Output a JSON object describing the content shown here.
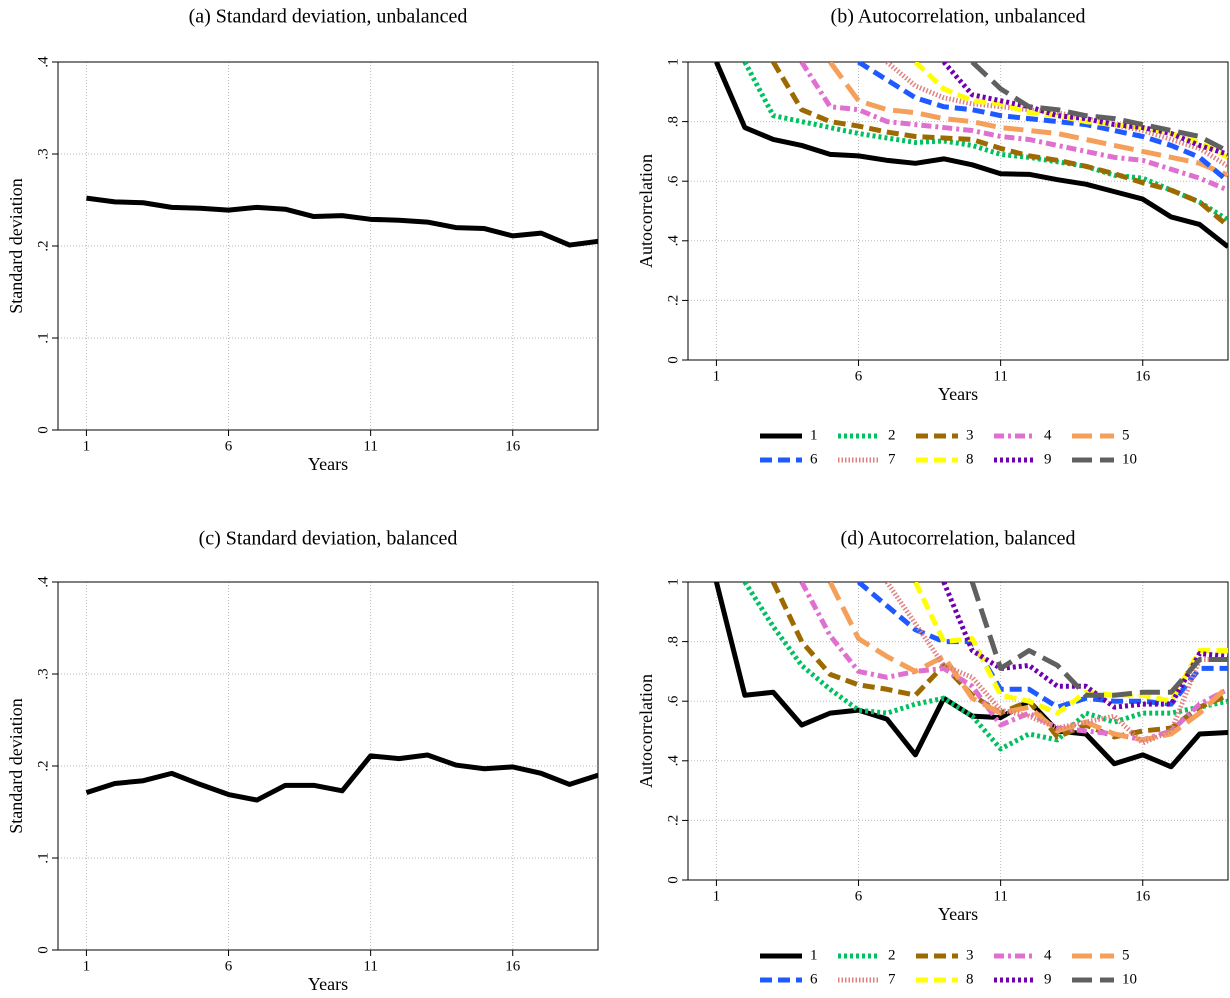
{
  "chart_data": [
    {
      "type": "line",
      "title": "(a) Standard deviation, unbalanced",
      "xlabel": "Years",
      "ylabel": "Standard deviation",
      "x": [
        1,
        2,
        3,
        4,
        5,
        6,
        7,
        8,
        9,
        10,
        11,
        12,
        13,
        14,
        15,
        16,
        17,
        18,
        19
      ],
      "xlim": [
        0,
        19
      ],
      "xticks": [
        1,
        6,
        11,
        16
      ],
      "ylim": [
        0,
        0.4
      ],
      "yticks": [
        0,
        {
          "value": 0.1,
          "label": ".1"
        },
        {
          "value": 0.2,
          "label": ".2"
        },
        {
          "value": 0.3,
          "label": ".3"
        },
        {
          "value": 0.4,
          "label": ".4"
        }
      ],
      "grid": true,
      "series": [
        {
          "color": "#000000",
          "style": "solid",
          "values": [
            0.252,
            0.248,
            0.247,
            0.242,
            0.241,
            0.239,
            0.242,
            0.24,
            0.232,
            0.233,
            0.229,
            0.228,
            0.226,
            0.22,
            0.219,
            0.211,
            0.214,
            0.201,
            0.205
          ]
        }
      ]
    },
    {
      "type": "line",
      "title": "(b) Autocorrelation, unbalanced",
      "xlabel": "Years",
      "ylabel": "Autocorrelation",
      "x": [
        1,
        2,
        3,
        4,
        5,
        6,
        7,
        8,
        9,
        10,
        11,
        12,
        13,
        14,
        15,
        16,
        17,
        18,
        19
      ],
      "xlim": [
        0,
        19
      ],
      "xticks": [
        1,
        6,
        11,
        16
      ],
      "ylim": [
        0,
        1
      ],
      "yticks": [
        0,
        {
          "value": 0.2,
          "label": ".2"
        },
        {
          "value": 0.4,
          "label": ".4"
        },
        {
          "value": 0.6,
          "label": ".6"
        },
        {
          "value": 0.8,
          "label": ".8"
        },
        1
      ],
      "grid": true,
      "legend": "bottom",
      "series": [
        {
          "name": "1",
          "color": "#000000",
          "style": "solid",
          "values": [
            1,
            0.78,
            0.74,
            0.72,
            0.69,
            0.685,
            0.67,
            0.66,
            0.675,
            0.655,
            0.625,
            0.623,
            0.605,
            0.59,
            0.565,
            0.54,
            0.48,
            0.455,
            0.38
          ]
        },
        {
          "name": "2",
          "color": "#00c060",
          "style": "dotted",
          "values": [
            null,
            1,
            0.82,
            0.8,
            0.78,
            0.76,
            0.745,
            0.73,
            0.735,
            0.72,
            0.69,
            0.68,
            0.665,
            0.65,
            0.62,
            0.61,
            0.57,
            0.53,
            0.47
          ]
        },
        {
          "name": "3",
          "color": "#9c6a00",
          "style": "dashed",
          "values": [
            null,
            null,
            1,
            0.84,
            0.8,
            0.785,
            0.765,
            0.75,
            0.745,
            0.74,
            0.71,
            0.685,
            0.67,
            0.65,
            0.625,
            0.595,
            0.57,
            0.53,
            0.45
          ]
        },
        {
          "name": "4",
          "color": "#e070d0",
          "style": "dashdot",
          "values": [
            null,
            null,
            null,
            1,
            0.85,
            0.84,
            0.8,
            0.79,
            0.78,
            0.77,
            0.75,
            0.74,
            0.72,
            0.7,
            0.68,
            0.67,
            0.64,
            0.61,
            0.57
          ]
        },
        {
          "name": "5",
          "color": "#f4a05a",
          "style": "longdash",
          "values": [
            null,
            null,
            null,
            null,
            1,
            0.87,
            0.84,
            0.83,
            0.81,
            0.8,
            0.78,
            0.77,
            0.76,
            0.74,
            0.72,
            0.7,
            0.68,
            0.66,
            0.62
          ]
        },
        {
          "name": "6",
          "color": "#1e5aff",
          "style": "dashed",
          "values": [
            null,
            null,
            null,
            null,
            null,
            1,
            0.94,
            0.88,
            0.85,
            0.84,
            0.82,
            0.81,
            0.8,
            0.79,
            0.77,
            0.75,
            0.72,
            0.68,
            0.6
          ]
        },
        {
          "name": "7",
          "color": "#e08080",
          "style": "finedot",
          "values": [
            null,
            null,
            null,
            null,
            null,
            null,
            1,
            0.92,
            0.88,
            0.86,
            0.85,
            0.84,
            0.83,
            0.81,
            0.79,
            0.77,
            0.74,
            0.71,
            0.65
          ]
        },
        {
          "name": "8",
          "color": "#ffff00",
          "style": "dashed",
          "values": [
            null,
            null,
            null,
            null,
            null,
            null,
            null,
            1,
            0.91,
            0.87,
            0.86,
            0.83,
            0.82,
            0.8,
            0.79,
            0.78,
            0.76,
            0.73,
            0.68
          ]
        },
        {
          "name": "9",
          "color": "#7000b0",
          "style": "dotted",
          "values": [
            null,
            null,
            null,
            null,
            null,
            null,
            null,
            null,
            1,
            0.89,
            0.87,
            0.85,
            0.82,
            0.81,
            0.79,
            0.78,
            0.76,
            0.72,
            0.69
          ]
        },
        {
          "name": "10",
          "color": "#606060",
          "style": "longdash",
          "values": [
            null,
            null,
            null,
            null,
            null,
            null,
            null,
            null,
            null,
            1,
            0.91,
            0.85,
            0.84,
            0.82,
            0.81,
            0.79,
            0.77,
            0.75,
            0.7
          ]
        }
      ]
    },
    {
      "type": "line",
      "title": "(c) Standard deviation, balanced",
      "xlabel": "Years",
      "ylabel": "Standard deviation",
      "x": [
        1,
        2,
        3,
        4,
        5,
        6,
        7,
        8,
        9,
        10,
        11,
        12,
        13,
        14,
        15,
        16,
        17,
        18,
        19
      ],
      "xlim": [
        0,
        19
      ],
      "xticks": [
        1,
        6,
        11,
        16
      ],
      "ylim": [
        0,
        0.4
      ],
      "yticks": [
        0,
        {
          "value": 0.1,
          "label": ".1"
        },
        {
          "value": 0.2,
          "label": ".2"
        },
        {
          "value": 0.3,
          "label": ".3"
        },
        {
          "value": 0.4,
          "label": ".4"
        }
      ],
      "grid": true,
      "series": [
        {
          "color": "#000000",
          "style": "solid",
          "values": [
            0.171,
            0.181,
            0.184,
            0.192,
            0.18,
            0.169,
            0.163,
            0.179,
            0.179,
            0.173,
            0.211,
            0.208,
            0.212,
            0.201,
            0.197,
            0.199,
            0.192,
            0.18,
            0.19
          ]
        }
      ]
    },
    {
      "type": "line",
      "title": "(d) Autocorrelation, balanced",
      "xlabel": "Years",
      "ylabel": "Autocorrelation",
      "x": [
        1,
        2,
        3,
        4,
        5,
        6,
        7,
        8,
        9,
        10,
        11,
        12,
        13,
        14,
        15,
        16,
        17,
        18,
        19
      ],
      "xlim": [
        0,
        19
      ],
      "xticks": [
        1,
        6,
        11,
        16
      ],
      "ylim": [
        0,
        1
      ],
      "yticks": [
        0,
        {
          "value": 0.2,
          "label": ".2"
        },
        {
          "value": 0.4,
          "label": ".4"
        },
        {
          "value": 0.6,
          "label": ".6"
        },
        {
          "value": 0.8,
          "label": ".8"
        },
        1
      ],
      "grid": true,
      "legend": "bottom",
      "series": [
        {
          "name": "1",
          "color": "#000000",
          "style": "solid",
          "values": [
            1,
            0.62,
            0.63,
            0.52,
            0.56,
            0.57,
            0.54,
            0.42,
            0.61,
            0.55,
            0.545,
            0.6,
            0.5,
            0.49,
            0.39,
            0.42,
            0.38,
            0.49,
            0.495
          ]
        },
        {
          "name": "2",
          "color": "#00c060",
          "style": "dotted",
          "values": [
            null,
            1,
            0.85,
            0.72,
            0.64,
            0.57,
            0.56,
            0.59,
            0.61,
            0.55,
            0.44,
            0.49,
            0.47,
            0.56,
            0.53,
            0.56,
            0.56,
            0.58,
            0.6
          ]
        },
        {
          "name": "3",
          "color": "#9c6a00",
          "style": "dashed",
          "values": [
            null,
            null,
            1,
            0.8,
            0.69,
            0.655,
            0.64,
            0.62,
            0.72,
            0.62,
            0.56,
            0.6,
            0.48,
            0.52,
            0.48,
            0.5,
            0.51,
            0.58,
            0.62
          ]
        },
        {
          "name": "4",
          "color": "#e070d0",
          "style": "dashdot",
          "values": [
            null,
            null,
            null,
            1,
            0.82,
            0.7,
            0.68,
            0.7,
            0.71,
            0.65,
            0.52,
            0.56,
            0.51,
            0.5,
            0.49,
            0.47,
            0.5,
            0.59,
            0.64
          ]
        },
        {
          "name": "5",
          "color": "#f4a05a",
          "style": "longdash",
          "values": [
            null,
            null,
            null,
            null,
            1,
            0.81,
            0.75,
            0.7,
            0.75,
            0.61,
            0.56,
            0.58,
            0.5,
            0.53,
            0.49,
            0.47,
            0.49,
            0.56,
            0.65
          ]
        },
        {
          "name": "6",
          "color": "#1e5aff",
          "style": "dashed",
          "values": [
            null,
            null,
            null,
            null,
            null,
            1,
            0.92,
            0.84,
            0.8,
            0.8,
            0.64,
            0.64,
            0.58,
            0.61,
            0.6,
            0.6,
            0.59,
            0.71,
            0.71
          ]
        },
        {
          "name": "7",
          "color": "#e08080",
          "style": "finedot",
          "values": [
            null,
            null,
            null,
            null,
            null,
            null,
            1,
            0.86,
            0.72,
            0.68,
            0.57,
            0.55,
            0.51,
            0.53,
            0.55,
            0.46,
            0.5,
            0.74,
            0.74
          ]
        },
        {
          "name": "8",
          "color": "#ffff00",
          "style": "dashed",
          "values": [
            null,
            null,
            null,
            null,
            null,
            null,
            null,
            1,
            0.8,
            0.81,
            0.62,
            0.6,
            0.56,
            0.63,
            0.62,
            0.62,
            0.6,
            0.77,
            0.77
          ]
        },
        {
          "name": "9",
          "color": "#7000b0",
          "style": "dotted",
          "values": [
            null,
            null,
            null,
            null,
            null,
            null,
            null,
            null,
            1,
            0.77,
            0.71,
            0.72,
            0.65,
            0.65,
            0.58,
            0.59,
            0.59,
            0.76,
            0.75
          ]
        },
        {
          "name": "10",
          "color": "#606060",
          "style": "longdash",
          "values": [
            null,
            null,
            null,
            null,
            null,
            null,
            null,
            null,
            null,
            1,
            0.71,
            0.77,
            0.72,
            0.62,
            0.62,
            0.63,
            0.63,
            0.74,
            0.74
          ]
        }
      ]
    }
  ]
}
